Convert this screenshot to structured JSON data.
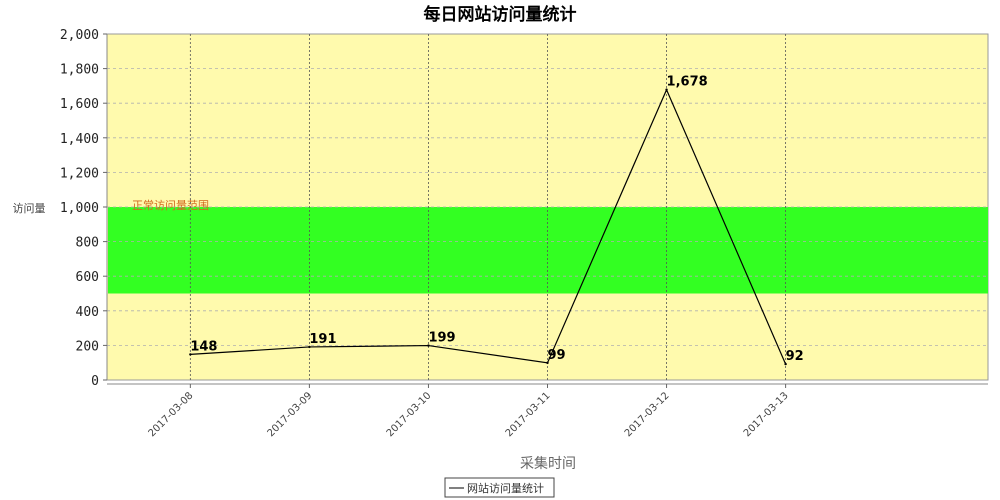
{
  "chart_data": {
    "type": "line",
    "title": "每日网站访问量统计",
    "xlabel": "采集时间",
    "ylabel": "访问量",
    "categories": [
      "2017-03-08",
      "2017-03-09",
      "2017-03-10",
      "2017-03-11",
      "2017-03-12",
      "2017-03-13"
    ],
    "series": [
      {
        "name": "网站访问量统计",
        "values": [
          148,
          191,
          199,
          99,
          1678,
          92
        ],
        "color": "#000000"
      }
    ],
    "data_labels": [
      "148",
      "191",
      "199",
      "99",
      "1,678",
      "92"
    ],
    "ylim": [
      0,
      2000
    ],
    "yticks": [
      0,
      200,
      400,
      600,
      800,
      1000,
      1200,
      1400,
      1600,
      1800,
      2000
    ],
    "ytick_labels": [
      "0",
      "200",
      "400",
      "600",
      "800",
      "1,000",
      "1,200",
      "1,400",
      "1,600",
      "1,800",
      "2,000"
    ],
    "band": {
      "from": 500,
      "to": 1000,
      "label": "正常访问量范围",
      "color": "#33ff22"
    },
    "plot_background": "#fffaad",
    "grid": true,
    "legend": "bottom"
  }
}
